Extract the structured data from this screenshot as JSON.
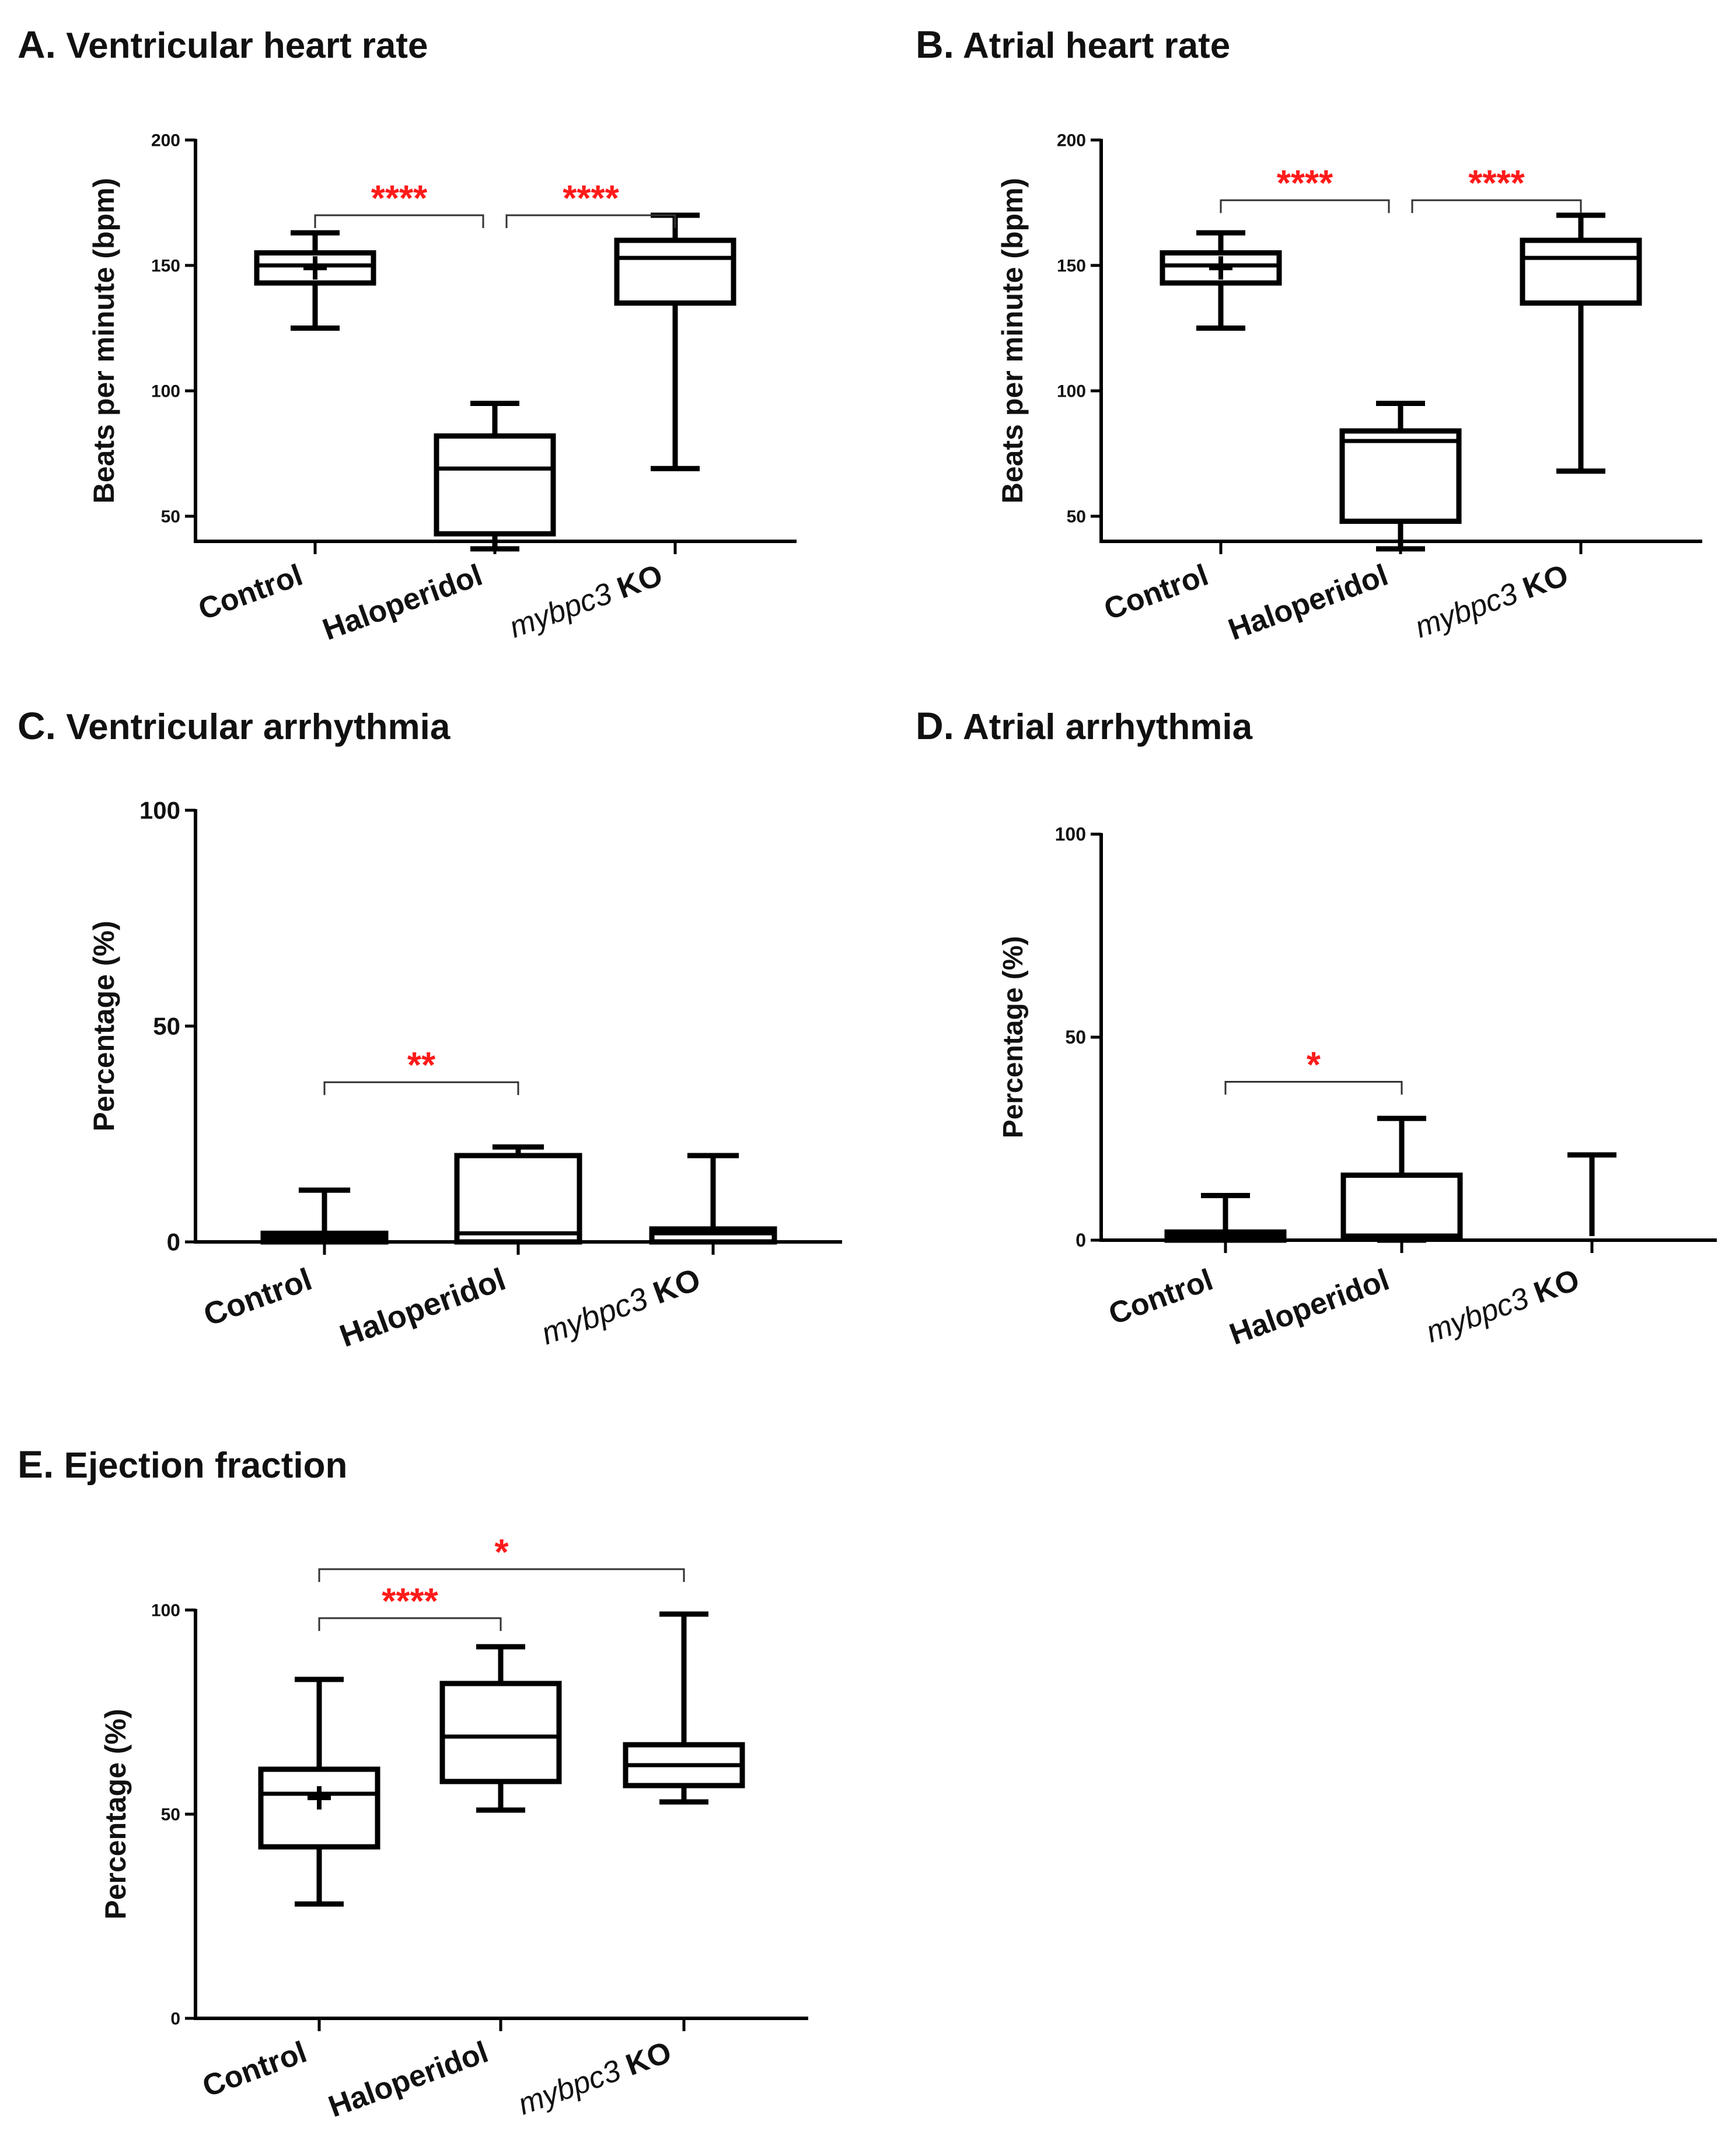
{
  "colors": {
    "axis": "#000000",
    "significance": "#ff1a1a",
    "background": "#ffffff"
  },
  "chart_data": [
    {
      "id": "A",
      "type": "box",
      "letter": "A.",
      "title": "Ventricular heart rate",
      "ylabel": "Beats per minute (bpm)",
      "xlabel": "",
      "ylim": [
        40,
        200
      ],
      "yticks": [
        50,
        100,
        150,
        200
      ],
      "categories": [
        {
          "label": "Control",
          "italic": "",
          "bold": "Control"
        },
        {
          "label": "Haloperidol",
          "italic": "",
          "bold": "Haloperidol"
        },
        {
          "label": "mybpc3 KO",
          "italic": "mybpc3",
          "bold": "KO"
        }
      ],
      "boxes": [
        {
          "min": 125,
          "q1": 143,
          "median": 150,
          "q3": 155,
          "max": 163,
          "mean": 149
        },
        {
          "min": 37,
          "q1": 43,
          "median": 69,
          "q3": 82,
          "max": 95
        },
        {
          "min": 69,
          "q1": 135,
          "median": 153,
          "q3": 160,
          "max": 170
        }
      ],
      "significance": [
        {
          "from": 0,
          "to": 1,
          "label": "****",
          "level": 170
        },
        {
          "from": 1,
          "to": 2,
          "label": "****",
          "level": 170
        }
      ]
    },
    {
      "id": "B",
      "type": "box",
      "letter": "B.",
      "title": "Atrial heart rate",
      "ylabel": "Beats per minute (bpm)",
      "xlabel": "",
      "ylim": [
        40,
        200
      ],
      "yticks": [
        50,
        100,
        150,
        200
      ],
      "categories": [
        {
          "label": "Control",
          "italic": "",
          "bold": "Control"
        },
        {
          "label": "Haloperidol",
          "italic": "",
          "bold": "Haloperidol"
        },
        {
          "label": "mybpc3 KO",
          "italic": "mybpc3",
          "bold": "KO"
        }
      ],
      "boxes": [
        {
          "min": 125,
          "q1": 143,
          "median": 150,
          "q3": 155,
          "max": 163,
          "mean": 149
        },
        {
          "min": 37,
          "q1": 48,
          "median": 80,
          "q3": 84,
          "max": 95
        },
        {
          "min": 68,
          "q1": 135,
          "median": 153,
          "q3": 160,
          "max": 170
        }
      ],
      "significance": [
        {
          "from": 0,
          "to": 1,
          "label": "****",
          "level": 176
        },
        {
          "from": 1,
          "to": 2,
          "label": "****",
          "level": 176
        }
      ]
    },
    {
      "id": "C",
      "type": "box",
      "letter": "C.",
      "title": "Ventricular arrhythmia",
      "ylabel": "Percentage (%)",
      "xlabel": "",
      "ylim": [
        0,
        100
      ],
      "yticks": [
        0,
        50,
        100
      ],
      "categories": [
        {
          "label": "Control",
          "italic": "",
          "bold": "Control"
        },
        {
          "label": "Haloperidol",
          "italic": "",
          "bold": "Haloperidol"
        },
        {
          "label": "mybpc3 KO",
          "italic": "mybpc3",
          "bold": "KO"
        }
      ],
      "boxes": [
        {
          "min": 0,
          "q1": 0,
          "median": 1,
          "q3": 2,
          "max": 12
        },
        {
          "min": 0,
          "q1": 0,
          "median": 2,
          "q3": 20,
          "max": 22
        },
        {
          "min": 0,
          "q1": 0,
          "median": 2,
          "q3": 3,
          "max": 20
        }
      ],
      "significance": [
        {
          "from": 0,
          "to": 1,
          "label": "**",
          "level": 37
        }
      ]
    },
    {
      "id": "D",
      "type": "box",
      "letter": "D.",
      "title": "Atrial arrhythmia",
      "ylabel": "Percentage (%)",
      "xlabel": "",
      "ylim": [
        0,
        100
      ],
      "yticks": [
        0,
        50,
        100
      ],
      "categories": [
        {
          "label": "Control",
          "italic": "",
          "bold": "Control"
        },
        {
          "label": "Haloperidol",
          "italic": "",
          "bold": "Haloperidol"
        },
        {
          "label": "mybpc3 KO",
          "italic": "mybpc3",
          "bold": "KO"
        }
      ],
      "boxes": [
        {
          "min": 0,
          "q1": 0,
          "median": 1,
          "q3": 2,
          "max": 11
        },
        {
          "min": 0,
          "q1": 1,
          "median": 1,
          "q3": 16,
          "max": 30
        },
        {
          "min": 1,
          "q1": 1,
          "median": 1,
          "q3": 1,
          "max": 21
        }
      ],
      "significance": [
        {
          "from": 0,
          "to": 1,
          "label": "*",
          "level": 39
        }
      ]
    },
    {
      "id": "E",
      "type": "box",
      "letter": "E.",
      "title": "Ejection fraction",
      "ylabel": "Percentage (%)",
      "xlabel": "",
      "ylim": [
        0,
        100
      ],
      "yticks": [
        0,
        50,
        100
      ],
      "categories": [
        {
          "label": "Control",
          "italic": "",
          "bold": "Control"
        },
        {
          "label": "Haloperidol",
          "italic": "",
          "bold": "Haloperidol"
        },
        {
          "label": "mybpc3 KO",
          "italic": "mybpc3",
          "bold": "KO"
        }
      ],
      "boxes": [
        {
          "min": 28,
          "q1": 42,
          "median": 55,
          "q3": 61,
          "max": 83,
          "mean": 54
        },
        {
          "min": 51,
          "q1": 58,
          "median": 69,
          "q3": 82,
          "max": 91
        },
        {
          "min": 53,
          "q1": 57,
          "median": 62,
          "q3": 67,
          "max": 99
        }
      ],
      "significance": [
        {
          "from": 0,
          "to": 1,
          "label": "****",
          "level": 98
        },
        {
          "from": 0,
          "to": 2,
          "label": "*",
          "level": 110
        }
      ]
    }
  ]
}
